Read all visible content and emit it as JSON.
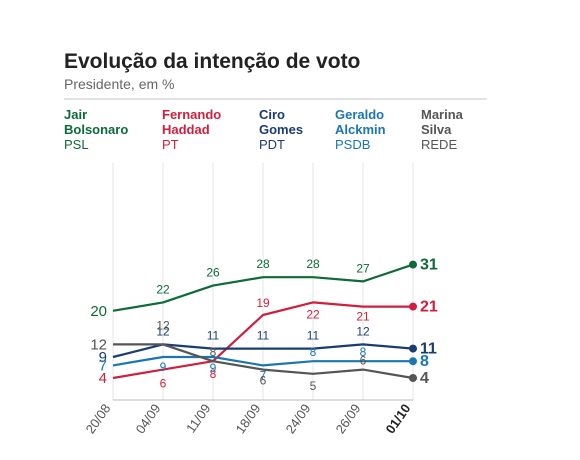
{
  "header": {
    "title": "Evolução da intenção de voto",
    "subtitle": "Presidente, em %"
  },
  "legend": [
    {
      "line1": "Jair",
      "line2": "Bolsonaro",
      "party": "PSL",
      "color": "#0d6b3a"
    },
    {
      "line1": "Fernando",
      "line2": "Haddad",
      "party": "PT",
      "color": "#cf1f3e"
    },
    {
      "line1": "Ciro",
      "line2": "Gomes",
      "party": "PDT",
      "color": "#1b3c73"
    },
    {
      "line1": "Geraldo",
      "line2": "Alckmin",
      "party": "PSDB",
      "color": "#1a76b3"
    },
    {
      "line1": "Marina",
      "line2": "Silva",
      "party": "REDE",
      "color": "#555555"
    }
  ],
  "chart_data": {
    "type": "line",
    "title": "Evolução da intenção de voto",
    "subtitle": "Presidente, em %",
    "xlabel": "",
    "ylabel": "",
    "categories": [
      "20/08",
      "04/09",
      "11/09",
      "18/09",
      "24/09",
      "26/09",
      "01/10"
    ],
    "ylim": [
      0,
      35
    ],
    "grid": "vertical",
    "legend_position": "top",
    "series": [
      {
        "name": "Jair Bolsonaro",
        "color": "#0d6b3a",
        "values": [
          20,
          22,
          26,
          28,
          28,
          27,
          31
        ]
      },
      {
        "name": "Fernando Haddad",
        "color": "#cf1f3e",
        "values": [
          4,
          6,
          8,
          19,
          22,
          21,
          21
        ]
      },
      {
        "name": "Ciro Gomes",
        "color": "#1b3c73",
        "values": [
          9,
          12,
          11,
          11,
          11,
          12,
          11
        ]
      },
      {
        "name": "Geraldo Alckmin",
        "color": "#1a76b3",
        "values": [
          7,
          9,
          9,
          7,
          8,
          8,
          8
        ]
      },
      {
        "name": "Marina Silva",
        "color": "#555555",
        "values": [
          12,
          12,
          8,
          6,
          5,
          6,
          4
        ]
      }
    ]
  }
}
